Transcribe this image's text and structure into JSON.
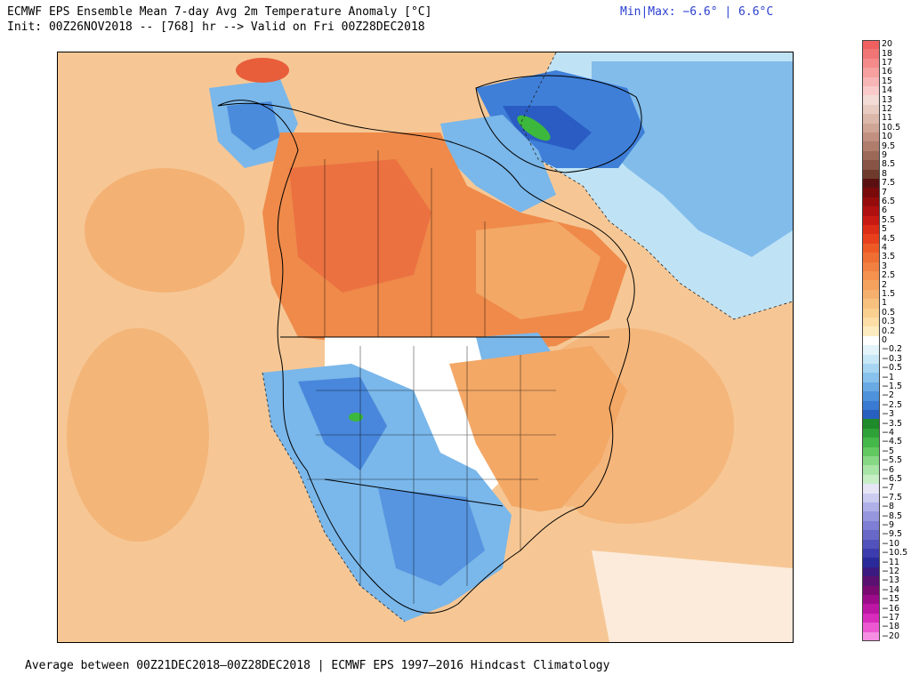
{
  "header": {
    "title_line1": "ECMWF EPS Ensemble Mean 7-day Avg 2m Temperature Anomaly [°C]",
    "title_line2": "Init: 00Z26NOV2018 -- [768] hr --> Valid on Fri 00Z28DEC2018",
    "minmax": "Min|Max: −6.6° | 6.6°C"
  },
  "footer": {
    "text": "Average between 00Z21DEC2018–00Z28DEC2018 | ECMWF EPS 1997–2016 Hindcast Climatology"
  },
  "map": {
    "region": "North America",
    "field": "2m temperature anomaly",
    "colors": {
      "warm_light": "#f6c795",
      "warm_mid": "#f3a866",
      "warm_strong": "#ef8a4a",
      "warm_hot": "#e85d3a",
      "neutral": "#ffffff",
      "cool_light": "#bfe3f5",
      "cool_mid": "#7ab7ea",
      "cool_strong": "#3f7fd8",
      "cool_deep": "#2a5cc4",
      "green_spot": "#3cb83c"
    }
  },
  "colorbar": {
    "levels": [
      {
        "label": "20",
        "color": "#f06060"
      },
      {
        "label": "18",
        "color": "#f27575"
      },
      {
        "label": "17",
        "color": "#f48a8a"
      },
      {
        "label": "16",
        "color": "#f6a0a0"
      },
      {
        "label": "15",
        "color": "#f8b5b5"
      },
      {
        "label": "14",
        "color": "#facaca"
      },
      {
        "label": "13",
        "color": "#f3dcd6"
      },
      {
        "label": "12",
        "color": "#e8ccc2"
      },
      {
        "label": "11",
        "color": "#dcb8ab"
      },
      {
        "label": "10.5",
        "color": "#cfa595"
      },
      {
        "label": "10",
        "color": "#c29080"
      },
      {
        "label": "9.5",
        "color": "#b07c6c"
      },
      {
        "label": "9",
        "color": "#9c6858"
      },
      {
        "label": "8.5",
        "color": "#885446"
      },
      {
        "label": "8",
        "color": "#6e3a2c"
      },
      {
        "label": "7.5",
        "color": "#5a1010"
      },
      {
        "label": "7",
        "color": "#7a0a0a"
      },
      {
        "label": "6.5",
        "color": "#960c0c"
      },
      {
        "label": "6",
        "color": "#b01010"
      },
      {
        "label": "5.5",
        "color": "#c81a12"
      },
      {
        "label": "5",
        "color": "#dc2c16"
      },
      {
        "label": "4.5",
        "color": "#e8401c"
      },
      {
        "label": "4",
        "color": "#ee5a26"
      },
      {
        "label": "3.5",
        "color": "#f06e32"
      },
      {
        "label": "3",
        "color": "#f28040"
      },
      {
        "label": "2.5",
        "color": "#f4924e"
      },
      {
        "label": "2",
        "color": "#f5a25e"
      },
      {
        "label": "1.5",
        "color": "#f6b06e"
      },
      {
        "label": "1",
        "color": "#f8c07e"
      },
      {
        "label": "0.5",
        "color": "#fad090"
      },
      {
        "label": "0.3",
        "color": "#fcdea6"
      },
      {
        "label": "0.2",
        "color": "#fdecc0"
      },
      {
        "label": "0",
        "color": "#ffffff"
      },
      {
        "label": "−0.2",
        "color": "#e4f4fb"
      },
      {
        "label": "−0.3",
        "color": "#c8e8f7"
      },
      {
        "label": "−0.5",
        "color": "#a8d6f2"
      },
      {
        "label": "−1",
        "color": "#88c2ec"
      },
      {
        "label": "−1.5",
        "color": "#6aaae4"
      },
      {
        "label": "−2",
        "color": "#4e92dc"
      },
      {
        "label": "−2.5",
        "color": "#3a7ad2"
      },
      {
        "label": "−3",
        "color": "#2860c0"
      },
      {
        "label": "−3.5",
        "color": "#1e8a2a"
      },
      {
        "label": "−4",
        "color": "#2ea236"
      },
      {
        "label": "−4.5",
        "color": "#44b848"
      },
      {
        "label": "−5",
        "color": "#62c860"
      },
      {
        "label": "−5.5",
        "color": "#86d884"
      },
      {
        "label": "−6",
        "color": "#a8e4a6"
      },
      {
        "label": "−6.5",
        "color": "#c8eec6"
      },
      {
        "label": "−7",
        "color": "#e6e6f6"
      },
      {
        "label": "−7.5",
        "color": "#ccccf0"
      },
      {
        "label": "−8",
        "color": "#b0b0e8"
      },
      {
        "label": "−8.5",
        "color": "#9696de"
      },
      {
        "label": "−9",
        "color": "#7e7ed4"
      },
      {
        "label": "−9.5",
        "color": "#6868c8"
      },
      {
        "label": "−10",
        "color": "#5252bc"
      },
      {
        "label": "−10.5",
        "color": "#3c3cae"
      },
      {
        "label": "−11",
        "color": "#2a2a9a"
      },
      {
        "label": "−12",
        "color": "#3a1a80"
      },
      {
        "label": "−13",
        "color": "#5a1070"
      },
      {
        "label": "−14",
        "color": "#7a0a72"
      },
      {
        "label": "−15",
        "color": "#9c0c8a"
      },
      {
        "label": "−16",
        "color": "#bc16a4"
      },
      {
        "label": "−17",
        "color": "#d82cbc"
      },
      {
        "label": "−18",
        "color": "#ec58d2"
      },
      {
        "label": "−20",
        "color": "#f68ee4"
      }
    ]
  }
}
